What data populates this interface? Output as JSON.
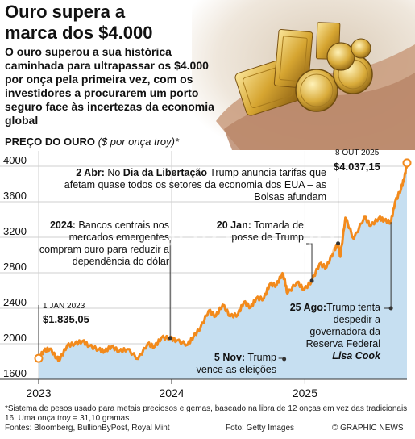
{
  "header": {
    "title": "Ouro supera a\nmarca dos $4.000",
    "subtitle": "O ouro superou a sua histórica caminhada para ultrapassar os $4.000 por onça pela primeira vez, com os investidores a procurarem um porto seguro face às incertezas da economia global"
  },
  "chart_title": {
    "label": "PREÇO DO OURO",
    "unit": "($ por onça troy)*"
  },
  "chart_data": {
    "type": "area",
    "title": "PREÇO DO OURO",
    "ylabel": "($ por onça troy)*",
    "ylim": [
      1600,
      4100
    ],
    "yticks": [
      "4000",
      "3600",
      "3200",
      "2800",
      "2400",
      "2000",
      "1600"
    ],
    "xticks": [
      "2023",
      "2024",
      "2025"
    ],
    "grid": true,
    "series": [
      {
        "values": [
          [
            "2023-01-01",
            1835
          ],
          [
            "2023-01-15",
            1920
          ],
          [
            "2023-02-01",
            1945
          ],
          [
            "2023-02-20",
            1835
          ],
          [
            "2023-03-01",
            1830
          ],
          [
            "2023-03-20",
            1980
          ],
          [
            "2023-04-10",
            2000
          ],
          [
            "2023-05-01",
            2030
          ],
          [
            "2023-05-20",
            1975
          ],
          [
            "2023-06-15",
            1935
          ],
          [
            "2023-07-01",
            1915
          ],
          [
            "2023-07-20",
            1970
          ],
          [
            "2023-08-10",
            1915
          ],
          [
            "2023-09-01",
            1940
          ],
          [
            "2023-10-01",
            1830
          ],
          [
            "2023-10-27",
            2000
          ],
          [
            "2023-11-15",
            1965
          ],
          [
            "2023-12-04",
            2070
          ],
          [
            "2023-12-28",
            2065
          ],
          [
            "2024-01-15",
            2035
          ],
          [
            "2024-02-14",
            1990
          ],
          [
            "2024-03-01",
            2080
          ],
          [
            "2024-03-20",
            2180
          ],
          [
            "2024-04-12",
            2375
          ],
          [
            "2024-05-01",
            2310
          ],
          [
            "2024-05-20",
            2440
          ],
          [
            "2024-06-10",
            2310
          ],
          [
            "2024-07-01",
            2330
          ],
          [
            "2024-07-17",
            2470
          ],
          [
            "2024-08-05",
            2410
          ],
          [
            "2024-08-20",
            2510
          ],
          [
            "2024-09-10",
            2510
          ],
          [
            "2024-09-26",
            2670
          ],
          [
            "2024-10-15",
            2660
          ],
          [
            "2024-10-30",
            2785
          ],
          [
            "2024-11-05",
            2740
          ],
          [
            "2024-11-14",
            2565
          ],
          [
            "2024-12-10",
            2695
          ],
          [
            "2024-12-30",
            2610
          ],
          [
            "2025-01-20",
            2710
          ],
          [
            "2025-02-10",
            2900
          ],
          [
            "2025-03-01",
            2860
          ],
          [
            "2025-03-20",
            3040
          ],
          [
            "2025-04-02",
            3130
          ],
          [
            "2025-04-08",
            2980
          ],
          [
            "2025-04-22",
            3420
          ],
          [
            "2025-05-15",
            3180
          ],
          [
            "2025-06-13",
            3430
          ],
          [
            "2025-07-01",
            3330
          ],
          [
            "2025-07-23",
            3420
          ],
          [
            "2025-08-07",
            3390
          ],
          [
            "2025-08-25",
            3370
          ],
          [
            "2025-09-05",
            3590
          ],
          [
            "2025-09-22",
            3750
          ],
          [
            "2025-10-01",
            3870
          ],
          [
            "2025-10-08",
            4037.15
          ]
        ]
      }
    ],
    "colors": {
      "line": "#f28a1c",
      "area": "#c6dff1",
      "grid": "#cfcfcf",
      "leader": "#333333"
    }
  },
  "annotations": {
    "start": {
      "date": "1 JAN 2023",
      "value": "$1.835,05"
    },
    "end": {
      "date": "8 OUT 2025",
      "value": "$4.037,15"
    },
    "events": [
      {
        "date": "2023-12-28",
        "bold": "2024:",
        "text": " Bancos centrais nos mercados emergentes compram ouro para reduzir a dependência do dólar"
      },
      {
        "date": "2024-11-05",
        "bold": "5 Nov:",
        "text": " Trump vence as eleições"
      },
      {
        "date": "2025-01-20",
        "bold": "20 Jan:",
        "text": " Tomada de posse de Trump"
      },
      {
        "date": "2025-04-02",
        "bold": "2 Abr:",
        "text_pre": " No ",
        "bold2": "Dia da Libertação",
        "text": " Trump anuncia tarifas que afetam quase todos os setores da economia dos EUA – as Bolsas afundam"
      },
      {
        "date": "2025-08-25",
        "bold": "25 Ago:",
        "text": "Trump tenta despedir a governadora da Reserva Federal ",
        "bold_italic": "Lisa Cook"
      }
    ]
  },
  "watermark": "GRAPHIC NEWS",
  "footer": {
    "footnote": "*Sistema de pesos usado para metais preciosos e gemas, baseado na libra de 12 onças em vez das tradicionais 16. Uma onça troy = 31,10 gramas",
    "sources": "Fontes: Bloomberg, BullionByPost, Royal Mint",
    "photo_credit": "Foto: Getty Images",
    "credit": "© GRAPHIC NEWS"
  }
}
